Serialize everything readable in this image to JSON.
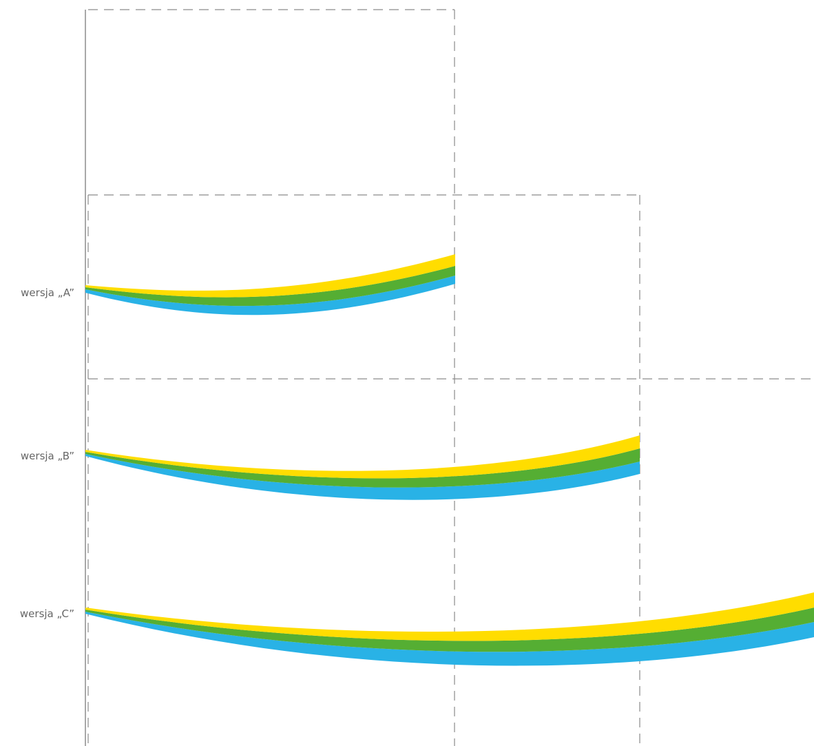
{
  "colors": {
    "yellow": "#FFDD00",
    "green": "#55AE33",
    "blue": "#29B2E6",
    "guide": "#8a8a8a",
    "label": "#666666"
  },
  "versions": [
    {
      "id": "a",
      "label": "wersja „A”"
    },
    {
      "id": "b",
      "label": "wersja „B”"
    },
    {
      "id": "c",
      "label": "wersja „C”"
    }
  ]
}
